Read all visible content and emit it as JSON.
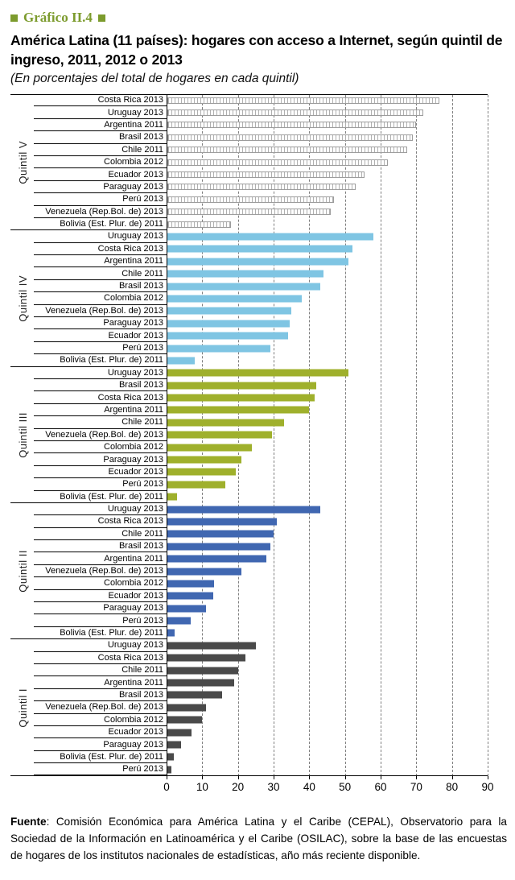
{
  "header": {
    "kicker": "Gráfico II.4",
    "title": "América Latina (11 países): hogares con acceso a Internet, según quintil de ingreso, 2011, 2012 o 2013",
    "subtitle": "(En porcentajes del total de hogares en cada quintil)"
  },
  "chart_data": {
    "type": "bar",
    "orientation": "horizontal",
    "title": "América Latina (11 países): hogares con acceso a Internet, según quintil de ingreso, 2011, 2012 o 2013",
    "subtitle": "(En porcentajes del total de hogares en cada quintil)",
    "xlabel": "",
    "ylabel": "",
    "xlim": [
      0,
      90
    ],
    "xticks": [
      0,
      10,
      20,
      30,
      40,
      50,
      60,
      70,
      80,
      90
    ],
    "grid": "vertical dashed gridlines every 10",
    "legend": "none (groups labeled on axis)",
    "groups": [
      {
        "label": "Quintil V",
        "style": "hatched",
        "color": "#ffffff",
        "bars": [
          {
            "label": "Costa Rica 2013",
            "value": 76.5
          },
          {
            "label": "Uruguay 2013",
            "value": 72
          },
          {
            "label": "Argentina 2011",
            "value": 70
          },
          {
            "label": "Brasil 2013",
            "value": 69
          },
          {
            "label": "Chile 2011",
            "value": 67.5
          },
          {
            "label": "Colombia 2012",
            "value": 62
          },
          {
            "label": "Ecuador 2013",
            "value": 55.5
          },
          {
            "label": "Paraguay 2013",
            "value": 53
          },
          {
            "label": "Perú 2013",
            "value": 47
          },
          {
            "label": "Venezuela (Rep.Bol. de) 2013",
            "value": 46
          },
          {
            "label": "Bolivia (Est. Plur. de) 2011",
            "value": 18
          }
        ]
      },
      {
        "label": "Quintil IV",
        "style": "solid",
        "color": "#7fc5e3",
        "bars": [
          {
            "label": "Uruguay 2013",
            "value": 58
          },
          {
            "label": "Costa Rica 2013",
            "value": 52
          },
          {
            "label": "Argentina 2011",
            "value": 51
          },
          {
            "label": "Chile 2011",
            "value": 44
          },
          {
            "label": "Brasil 2013",
            "value": 43
          },
          {
            "label": "Colombia 2012",
            "value": 38
          },
          {
            "label": "Venezuela (Rep.Bol. de) 2013",
            "value": 35
          },
          {
            "label": "Paraguay 2013",
            "value": 34.5
          },
          {
            "label": "Ecuador 2013",
            "value": 34
          },
          {
            "label": "Perú 2013",
            "value": 29
          },
          {
            "label": "Bolivia (Est. Plur. de) 2011",
            "value": 8
          }
        ]
      },
      {
        "label": "Quintil III",
        "style": "solid",
        "color": "#9fb02c",
        "bars": [
          {
            "label": "Uruguay 2013",
            "value": 51
          },
          {
            "label": "Brasil 2013",
            "value": 42
          },
          {
            "label": "Costa Rica 2013",
            "value": 41.5
          },
          {
            "label": "Argentina 2011",
            "value": 40
          },
          {
            "label": "Chile 2011",
            "value": 33
          },
          {
            "label": "Venezuela (Rep.Bol. de) 2013",
            "value": 29.5
          },
          {
            "label": "Colombia 2012",
            "value": 24
          },
          {
            "label": "Paraguay 2013",
            "value": 21
          },
          {
            "label": "Ecuador 2013",
            "value": 19.5
          },
          {
            "label": "Perú 2013",
            "value": 16.5
          },
          {
            "label": "Bolivia (Est. Plur. de) 2011",
            "value": 3
          }
        ]
      },
      {
        "label": "Quintil II",
        "style": "solid",
        "color": "#4067b1",
        "bars": [
          {
            "label": "Uruguay 2013",
            "value": 43
          },
          {
            "label": "Costa Rica 2013",
            "value": 31
          },
          {
            "label": "Chile 2011",
            "value": 30
          },
          {
            "label": "Brasil 2013",
            "value": 29
          },
          {
            "label": "Argentina 2011",
            "value": 28
          },
          {
            "label": "Venezuela (Rep.Bol. de) 2013",
            "value": 21
          },
          {
            "label": "Colombia 2012",
            "value": 13.3
          },
          {
            "label": "Ecuador 2013",
            "value": 13
          },
          {
            "label": "Paraguay 2013",
            "value": 11
          },
          {
            "label": "Perú 2013",
            "value": 6.7
          },
          {
            "label": "Bolivia (Est. Plur. de) 2011",
            "value": 2.3
          }
        ]
      },
      {
        "label": "Quintil I",
        "style": "solid",
        "color": "#4a4a4a",
        "bars": [
          {
            "label": "Uruguay 2013",
            "value": 25
          },
          {
            "label": "Costa Rica 2013",
            "value": 22
          },
          {
            "label": "Chile 2011",
            "value": 20
          },
          {
            "label": "Argentina 2011",
            "value": 19
          },
          {
            "label": "Brasil 2013",
            "value": 15.5
          },
          {
            "label": "Venezuela (Rep.Bol. de) 2013",
            "value": 11
          },
          {
            "label": "Colombia 2012",
            "value": 10
          },
          {
            "label": "Ecuador 2013",
            "value": 7
          },
          {
            "label": "Paraguay 2013",
            "value": 4
          },
          {
            "label": "Bolivia (Est. Plur. de) 2011",
            "value": 2
          },
          {
            "label": "Perú 2013",
            "value": 1.3
          }
        ]
      }
    ]
  },
  "source": {
    "label": "Fuente",
    "text": ": Comisión Económica para América Latina y el Caribe (CEPAL), Observatorio para la Sociedad de la Información en Latinoamérica y el Caribe (OSILAC), sobre la base de las encuestas de hogares de los institutos nacionales de estadísticas, año más reciente disponible."
  },
  "colors": {
    "accent_olive": "#7c9b2d",
    "quintil_v_border": "#9d9d9d",
    "quintil_iv": "#7fc5e3",
    "quintil_iii": "#9fb02c",
    "quintil_ii": "#4067b1",
    "quintil_i": "#4a4a4a",
    "gridline": "#7f7f7f"
  }
}
